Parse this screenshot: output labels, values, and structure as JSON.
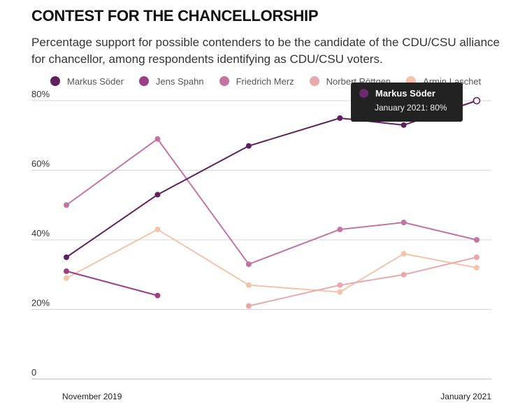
{
  "header": {
    "title": "CONTEST FOR THE CHANCELLORSHIP",
    "subtitle": "Percentage support for possible contenders to be the candidate of the CDU/CSU alliance for chancellor, among respondents identifying as CDU/CSU voters."
  },
  "tooltip": {
    "name": "Markus Söder",
    "detail": "January 2021: 80%",
    "color": "#6a2a72"
  },
  "chart_data": {
    "type": "line",
    "title": "CONTEST FOR THE CHANCELLORSHIP",
    "xlabel": "",
    "ylabel": "",
    "x_tick_labels": [
      "November 2019",
      "January 2021"
    ],
    "y_ticks": [
      0,
      20,
      40,
      60,
      80
    ],
    "y_tick_labels": [
      "0",
      "20%",
      "40%",
      "60%",
      "80%"
    ],
    "ylim": [
      0,
      80
    ],
    "x": [
      0,
      1,
      2,
      3,
      3.7,
      4.5
    ],
    "series": [
      {
        "name": "Markus Söder",
        "color": "#5f1f60",
        "values": [
          35,
          53,
          67,
          75,
          73,
          80
        ]
      },
      {
        "name": "Jens Spahn",
        "color": "#9b3f87",
        "values": [
          31,
          24,
          null,
          null,
          null,
          null
        ]
      },
      {
        "name": "Friedrich Merz",
        "color": "#c474a3",
        "values": [
          50,
          69,
          33,
          43,
          45,
          40
        ]
      },
      {
        "name": "Norbert Röttgen",
        "color": "#e9a8ac",
        "values": [
          null,
          null,
          21,
          27,
          30,
          35
        ]
      },
      {
        "name": "Armin Laschet",
        "color": "#f4c3aa",
        "values": [
          29,
          43,
          27,
          25,
          36,
          32
        ]
      }
    ],
    "highlight": {
      "series": "Markus Söder",
      "point_index": 5
    }
  }
}
